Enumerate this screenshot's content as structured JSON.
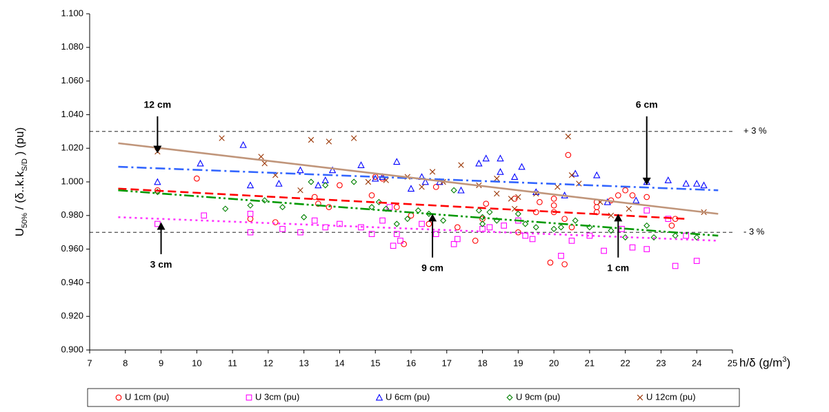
{
  "chart_data": {
    "type": "scatter",
    "y_label": [
      {
        "text": "U"
      },
      {
        "text": "50%",
        "shift": "sub"
      },
      {
        "text": " / (δ..k.k"
      },
      {
        "text": "S/D",
        "shift": "sub"
      },
      {
        "text": " ) (pu)"
      }
    ],
    "x_label": [
      {
        "text": "h/δ (g/m"
      },
      {
        "text": "3",
        "shift": "super"
      },
      {
        "text": ")"
      }
    ],
    "xlim": [
      7,
      25
    ],
    "xticks": [
      7,
      8,
      9,
      10,
      11,
      12,
      13,
      14,
      15,
      16,
      17,
      18,
      19,
      20,
      21,
      22,
      23,
      24,
      25
    ],
    "ylim": [
      0.9,
      1.1
    ],
    "yticks": [
      {
        "value": 0.9,
        "label": "0.900"
      },
      {
        "value": 0.92,
        "label": "0.920"
      },
      {
        "value": 0.94,
        "label": "0.940"
      },
      {
        "value": 0.96,
        "label": "0.960"
      },
      {
        "value": 0.98,
        "label": "0.980"
      },
      {
        "value": 1.0,
        "label": "1.000"
      },
      {
        "value": 1.02,
        "label": "1.020"
      },
      {
        "value": 1.04,
        "label": "1.040"
      },
      {
        "value": 1.06,
        "label": "1.060"
      },
      {
        "value": 1.08,
        "label": "1.080"
      },
      {
        "value": 1.1,
        "label": "1.100"
      }
    ],
    "reference_lines": [
      {
        "value": 1.03,
        "label": "+ 3 %"
      },
      {
        "value": 0.97,
        "label": "- 3 %"
      }
    ],
    "legend": "bottom",
    "series": [
      {
        "name": "U 1cm (pu)",
        "color": "#ff0000",
        "marker": "circle",
        "x": [
          8.9,
          10,
          11.5,
          12.2,
          13.3,
          13.4,
          13.7,
          14,
          14.9,
          15,
          15.2,
          15.6,
          15.8,
          16,
          16.5,
          16.7,
          17.3,
          17.8,
          18,
          18.1,
          18.9,
          19,
          19.5,
          19.6,
          19.9,
          20,
          20,
          20,
          20.3,
          20.3,
          20.4,
          20.5,
          21.2,
          21.2,
          21.2,
          21.6,
          21.8,
          22,
          22.2,
          22.6,
          23.3,
          23.4
        ],
        "values": [
          0.995,
          1.002,
          0.978,
          0.976,
          0.991,
          0.987,
          0.985,
          0.998,
          0.992,
          1.003,
          1.002,
          0.985,
          0.963,
          0.98,
          0.975,
          0.997,
          0.973,
          0.965,
          0.978,
          0.987,
          0.99,
          0.97,
          0.982,
          0.988,
          0.952,
          0.99,
          0.986,
          0.982,
          0.978,
          0.951,
          1.016,
          0.973,
          0.988,
          0.985,
          0.982,
          0.989,
          0.992,
          0.995,
          0.992,
          0.991,
          0.974,
          0.978
        ],
        "trend": {
          "color": "#ff0000",
          "dash": "dashed",
          "x": [
            7.8,
            23.7
          ],
          "y": [
            0.996,
            0.978
          ]
        }
      },
      {
        "name": "U 3cm (pu)",
        "color": "#ff00ff",
        "marker": "square",
        "x": [
          8.9,
          10.2,
          11.5,
          11.5,
          12.4,
          12.9,
          13.3,
          13.6,
          14,
          14.6,
          14.9,
          15.2,
          15.4,
          15.5,
          15.6,
          15.7,
          16.3,
          16.7,
          17.2,
          17.3,
          18,
          18.2,
          18.6,
          19,
          19.2,
          19.4,
          20.2,
          20.5,
          21,
          21.4,
          21.9,
          22.2,
          22.6,
          22.6,
          23.2,
          23.4,
          24,
          23.7
        ],
        "values": [
          0.975,
          0.98,
          0.97,
          0.981,
          0.972,
          0.97,
          0.977,
          0.973,
          0.975,
          0.973,
          0.969,
          0.977,
          0.985,
          0.962,
          0.969,
          0.965,
          0.975,
          0.969,
          0.963,
          0.966,
          0.972,
          0.973,
          0.974,
          0.977,
          0.968,
          0.966,
          0.956,
          0.965,
          0.968,
          0.959,
          0.972,
          0.961,
          0.96,
          0.983,
          0.978,
          0.95,
          0.953,
          0.968
        ],
        "trend": {
          "color": "#ff33ff",
          "dash": "dotted",
          "x": [
            7.8,
            24.6
          ],
          "y": [
            0.979,
            0.965
          ]
        }
      },
      {
        "name": "U 6cm (pu)",
        "color": "#0000ff",
        "marker": "triangle",
        "x": [
          8.9,
          10.1,
          11.3,
          11.5,
          12.3,
          12.9,
          13.4,
          13.6,
          13.8,
          14.6,
          15,
          15.2,
          15.6,
          16,
          16.3,
          16.4,
          16.8,
          17.4,
          17.9,
          18.1,
          18.5,
          18.5,
          18.9,
          19.1,
          19.5,
          20.3,
          20.6,
          21.2,
          21.5,
          22.3,
          22.6,
          23.2,
          23.7,
          24.2,
          24
        ],
        "values": [
          1.0,
          1.011,
          1.022,
          0.998,
          0.999,
          1.007,
          0.998,
          1.001,
          1.007,
          1.01,
          1.002,
          1.003,
          1.012,
          0.996,
          1.003,
          1.0,
          1.0,
          0.995,
          1.011,
          1.014,
          1.014,
          1.006,
          1.003,
          1.009,
          0.994,
          0.992,
          1.005,
          1.004,
          0.988,
          0.989,
          1.0,
          1.001,
          0.999,
          0.998,
          0.999
        ],
        "trend": {
          "color": "#3366ff",
          "dash": "dashdot",
          "x": [
            7.8,
            24.6
          ],
          "y": [
            1.009,
            0.995
          ]
        }
      },
      {
        "name": "U 9cm (pu)",
        "color": "#008000",
        "marker": "diamond",
        "x": [
          8.9,
          10.8,
          11.5,
          11.9,
          12.4,
          13,
          13.2,
          13.6,
          14.4,
          14.9,
          15.1,
          15.3,
          15.6,
          15.9,
          16.2,
          16.5,
          16.9,
          17.2,
          17.9,
          18,
          18,
          18.2,
          18.4,
          19,
          19.2,
          19.5,
          20,
          20.2,
          20.6,
          21,
          21.6,
          22,
          22.6,
          22.8,
          23.4,
          24
        ],
        "values": [
          0.994,
          0.984,
          0.986,
          0.989,
          0.985,
          0.979,
          1.0,
          0.998,
          1.0,
          0.985,
          0.988,
          0.984,
          0.975,
          0.978,
          0.983,
          0.981,
          0.977,
          0.995,
          0.983,
          0.979,
          0.975,
          0.982,
          0.977,
          0.981,
          0.975,
          0.973,
          0.972,
          0.973,
          0.977,
          0.973,
          0.971,
          0.967,
          0.974,
          0.967,
          0.968,
          0.967
        ],
        "trend": {
          "color": "#009900",
          "dash": "dashdotdot",
          "x": [
            7.8,
            24.6
          ],
          "y": [
            0.995,
            0.968
          ]
        }
      },
      {
        "name": "U 12cm (pu)",
        "color": "#993300",
        "marker": "cross",
        "x": [
          8.9,
          10.7,
          11.8,
          11.9,
          12.2,
          12.9,
          13.2,
          13.7,
          14.4,
          14.8,
          15.3,
          15.9,
          16.3,
          16.6,
          16.9,
          17.4,
          17.9,
          18.4,
          18.4,
          18.8,
          18.9,
          19,
          19.5,
          20.1,
          20.4,
          20.5,
          20.7,
          21.3,
          21.6,
          22.1,
          24.2
        ],
        "values": [
          1.018,
          1.026,
          1.015,
          1.011,
          1.004,
          0.995,
          1.025,
          1.024,
          1.026,
          1.0,
          1.001,
          1.003,
          0.997,
          1.006,
          1.0,
          1.01,
          0.998,
          1.002,
          0.993,
          0.99,
          0.984,
          0.991,
          0.993,
          0.997,
          1.027,
          1.004,
          0.999,
          0.988,
          0.98,
          0.984,
          0.982
        ],
        "trend": {
          "color": "#c0957a",
          "dash": "solid",
          "x": [
            7.8,
            24.6
          ],
          "y": [
            1.023,
            0.981
          ]
        }
      }
    ],
    "annotations": [
      {
        "text": "12 cm",
        "xy": [
          8.9,
          1.017
        ],
        "xytext": [
          8.9,
          1.039
        ]
      },
      {
        "text": "6 cm",
        "xy": [
          22.6,
          0.998
        ],
        "xytext": [
          22.6,
          1.039
        ]
      },
      {
        "text": "3 cm",
        "xy": [
          9,
          0.976
        ],
        "xytext": [
          9,
          0.957
        ]
      },
      {
        "text": "9 cm",
        "xy": [
          16.6,
          0.981
        ],
        "xytext": [
          16.6,
          0.955
        ]
      },
      {
        "text": "1 cm",
        "xy": [
          21.8,
          0.981
        ],
        "xytext": [
          21.8,
          0.955
        ]
      }
    ]
  }
}
